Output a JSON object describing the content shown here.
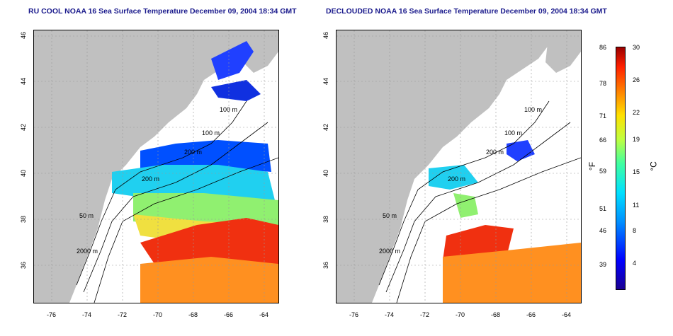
{
  "left_map": {
    "title": "RU COOL NOAA 16 Sea Surface Temperature December 09, 2004 18:34 GMT"
  },
  "right_map": {
    "title": "DECLOUDED NOAA 16 Sea Surface Temperature December 09, 2004 18:34 GMT"
  },
  "x_ticks": [
    "-76",
    "-74",
    "-72",
    "-70",
    "-68",
    "-66",
    "-64"
  ],
  "y_ticks": [
    "46",
    "44",
    "42",
    "40",
    "38",
    "36"
  ],
  "contour_labels": [
    "100 m",
    "100 m",
    "200 m",
    "200 m",
    "50 m",
    "2000 m"
  ],
  "colorbar": {
    "fahrenheit_ticks": [
      "86",
      "78",
      "71",
      "66",
      "59",
      "51",
      "46",
      "39"
    ],
    "celsius_ticks": [
      "30",
      "26",
      "22",
      "19",
      "15",
      "11",
      "8",
      "4"
    ],
    "fahrenheit_unit": "°F",
    "celsius_unit": "°C"
  },
  "colors": {
    "land": "#c0c0c0",
    "title": "#1a1a8c"
  }
}
